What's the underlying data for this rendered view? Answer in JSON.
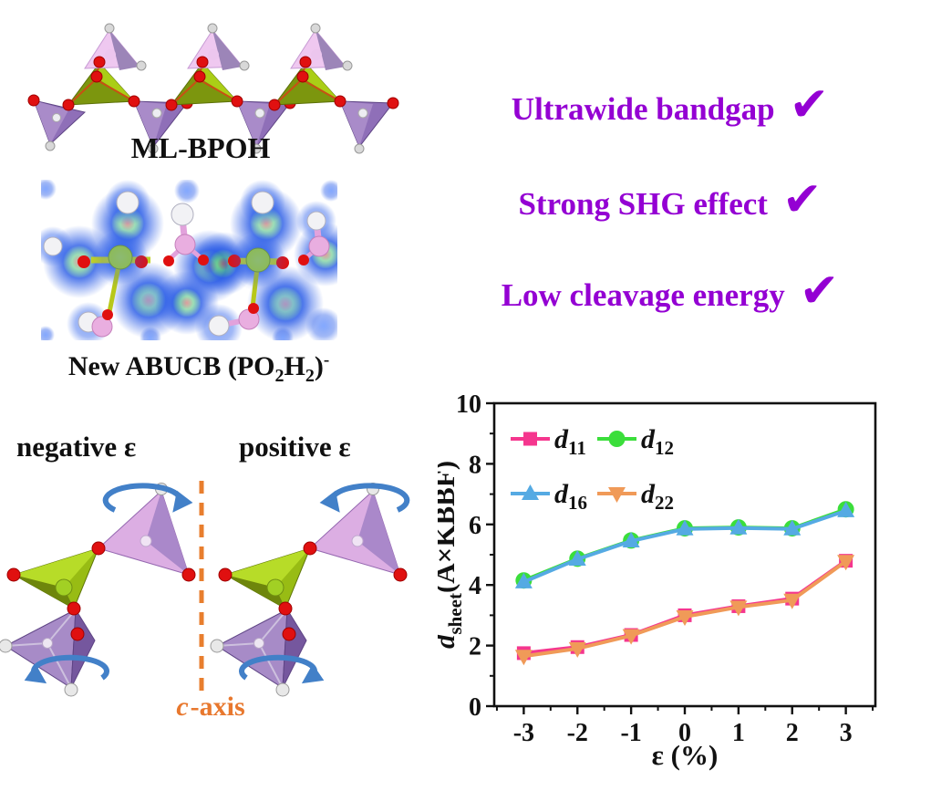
{
  "colors": {
    "accent_purple": "#9400D3",
    "axis_orange": "#E8782E",
    "arrow_blue": "#4280C8",
    "text_black": "#111111"
  },
  "panels": {
    "ml_bpoh": {
      "label": "ML-BPOH"
    },
    "abucb": {
      "pre": "New ABUCB (PO",
      "sub1": "2",
      "mid": "H",
      "sub2": "2",
      "post": ")",
      "sup": "-"
    },
    "features": {
      "check": "✔",
      "items": [
        {
          "label": "Ultrawide bandgap"
        },
        {
          "label": "Strong SHG effect"
        },
        {
          "label": "Low cleavage energy"
        }
      ]
    },
    "strain": {
      "negative_label": "negative ε",
      "positive_label": "positive ε",
      "c_axis_italic": "c",
      "c_axis_rest": "-axis"
    }
  },
  "chart_data": {
    "type": "line",
    "title": "",
    "xlabel": "ε (%)",
    "ylabel": {
      "lead_italic": "d",
      "sub": "sheet",
      "rest": "(Å×KBBF)"
    },
    "xlim": [
      -3.55,
      3.55
    ],
    "ylim": [
      0,
      10
    ],
    "xticks": [
      -3,
      -2,
      -1,
      0,
      1,
      2,
      3
    ],
    "xticks_minor": [
      -3.5,
      -2.5,
      -1.5,
      -0.5,
      0.5,
      1.5,
      2.5,
      3.5
    ],
    "yticks": [
      0,
      2,
      4,
      6,
      8,
      10
    ],
    "yticks_minor": [
      1,
      3,
      5,
      7,
      9
    ],
    "grid": false,
    "legend_position": "top-left-inside",
    "series_label_base": "d",
    "x": [
      -3,
      -2,
      -1,
      0,
      1,
      2,
      3
    ],
    "series": [
      {
        "name": "d11",
        "label_sub": "11",
        "color": "#F5368E",
        "marker": "square",
        "values": [
          1.75,
          1.95,
          2.35,
          3.0,
          3.3,
          3.55,
          4.8
        ]
      },
      {
        "name": "d12",
        "label_sub": "12",
        "color": "#3BDE3B",
        "marker": "circle",
        "values": [
          4.15,
          4.87,
          5.47,
          5.87,
          5.9,
          5.87,
          6.5
        ]
      },
      {
        "name": "d16",
        "label_sub": "16",
        "color": "#55AAE3",
        "marker": "triangle-up",
        "values": [
          4.1,
          4.85,
          5.45,
          5.85,
          5.88,
          5.85,
          6.45
        ]
      },
      {
        "name": "d22",
        "label_sub": "22",
        "color": "#F09A58",
        "marker": "triangle-down",
        "values": [
          1.65,
          1.9,
          2.33,
          2.95,
          3.27,
          3.5,
          4.78
        ]
      }
    ]
  }
}
